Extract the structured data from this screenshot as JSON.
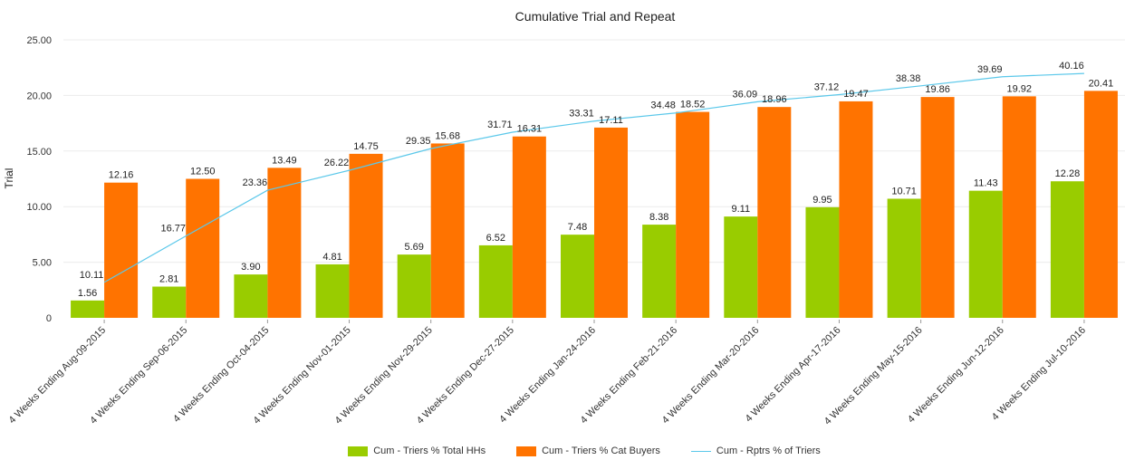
{
  "chart_data": {
    "type": "bar",
    "title": "Cumulative Trial and Repeat",
    "xlabel": "",
    "ylabel": "Trial",
    "ylim": [
      0,
      25
    ],
    "y_ticks": [
      "0",
      "5.00",
      "10.00",
      "15.00",
      "20.00",
      "25.00"
    ],
    "y_tick_values": [
      0,
      5,
      10,
      15,
      20,
      25
    ],
    "y2lim": [
      5,
      45
    ],
    "y2_axis_visible": false,
    "grid": true,
    "legend_position": "bottom",
    "categories": [
      "4 Weeks Ending Aug-09-2015",
      "4 Weeks Ending Sep-06-2015",
      "4 Weeks Ending Oct-04-2015",
      "4 Weeks Ending Nov-01-2015",
      "4 Weeks Ending Nov-29-2015",
      "4 Weeks Ending Dec-27-2015",
      "4 Weeks Ending Jan-24-2016",
      "4 Weeks Ending Feb-21-2016",
      "4 Weeks Ending Mar-20-2016",
      "4 Weeks Ending Apr-17-2016",
      "4 Weeks Ending May-15-2016",
      "4 Weeks Ending Jun-12-2016",
      "4 Weeks Ending Jul-10-2016"
    ],
    "series": [
      {
        "name": "Cum - Triers % Total HHs",
        "type": "bar",
        "axis": "primary",
        "color": "#99cc00",
        "values": [
          1.56,
          2.81,
          3.9,
          4.81,
          5.69,
          6.52,
          7.48,
          8.38,
          9.11,
          9.95,
          10.71,
          11.43,
          12.28
        ]
      },
      {
        "name": "Cum - Triers % Cat Buyers",
        "type": "bar",
        "axis": "primary",
        "color": "#ff7300",
        "values": [
          12.16,
          12.5,
          13.49,
          14.75,
          15.68,
          16.31,
          17.11,
          18.52,
          18.96,
          19.47,
          19.86,
          19.92,
          20.41
        ]
      },
      {
        "name": "Cum - Rptrs % of Triers",
        "type": "line",
        "axis": "secondary",
        "color": "#5bc8ea",
        "values": [
          10.11,
          16.77,
          23.36,
          26.22,
          29.35,
          31.71,
          33.31,
          34.48,
          36.09,
          37.12,
          38.38,
          39.69,
          40.16
        ]
      }
    ]
  }
}
